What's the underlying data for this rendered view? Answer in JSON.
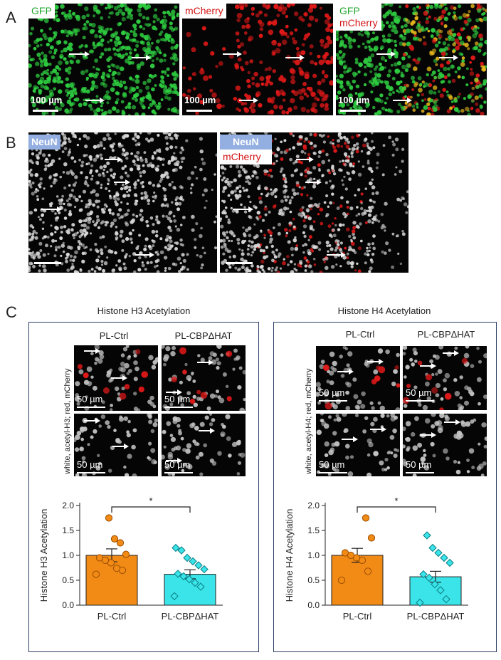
{
  "panel_labels": {
    "a": "A",
    "b": "B",
    "c": "C"
  },
  "panel_a": {
    "tags": [
      "GFP",
      "mCherry",
      "GFP",
      "mCherry"
    ],
    "scalebar": "100 µm"
  },
  "panel_b": {
    "tags": [
      "NeuN",
      "NeuN",
      "mCherry"
    ]
  },
  "panel_c": {
    "h3": {
      "title": "Histone H3 Acetylation",
      "col_ctrl": "PL-Ctrl",
      "col_hat": "PL-CBPΔHAT",
      "side_label": "white, acetyl-H3; red, mCherry",
      "scalebar": "50 µm"
    },
    "h4": {
      "title": "Histone H4 Acetylation",
      "col_ctrl": "PL-Ctrl",
      "col_hat": "PL-CBPΔHAT",
      "side_label": "white, acetyl-H4; red, mCherry",
      "scalebar": "50 µm"
    }
  },
  "colors": {
    "ctrl": "#f28a16",
    "hat": "#3ae4e8",
    "green": "#2ecc40",
    "red": "#e01818"
  },
  "chart_data": [
    {
      "type": "bar",
      "title": "Histone H3 Acetylation",
      "ylabel": "Histone H3 Acetylation",
      "categories": [
        "PL-Ctrl",
        "PL-CBPΔHAT"
      ],
      "values": [
        1.0,
        0.62
      ],
      "sem": [
        0.13,
        0.09
      ],
      "ylim": [
        0,
        2.0
      ],
      "yticks": [
        "0.0",
        "0.5",
        "1.0",
        "1.5",
        "2.0"
      ],
      "significance": "*",
      "points": [
        [
          0.62,
          0.7,
          0.74,
          0.85,
          0.9,
          0.95,
          1.02,
          1.25,
          1.33,
          1.75
        ],
        [
          0.18,
          0.37,
          0.45,
          0.52,
          0.58,
          0.63,
          0.72,
          0.8,
          0.88,
          0.95,
          1.1,
          1.15
        ]
      ]
    },
    {
      "type": "bar",
      "title": "Histone H4 Acetylation",
      "ylabel": "Histone H4 Acetylation",
      "categories": [
        "PL-Ctrl",
        "PL-CBPΔHAT"
      ],
      "values": [
        1.0,
        0.57
      ],
      "sem": [
        0.14,
        0.11
      ],
      "ylim": [
        0,
        2.0
      ],
      "yticks": [
        "0.0",
        "0.5",
        "1.0",
        "1.5",
        "2.0"
      ],
      "significance": "*",
      "points": [
        [
          0.5,
          0.68,
          0.9,
          0.95,
          1.0,
          1.05,
          1.35,
          1.75
        ],
        [
          0.05,
          0.12,
          0.3,
          0.42,
          0.55,
          0.62,
          0.85,
          0.95,
          1.05,
          1.15,
          1.4
        ]
      ]
    }
  ]
}
